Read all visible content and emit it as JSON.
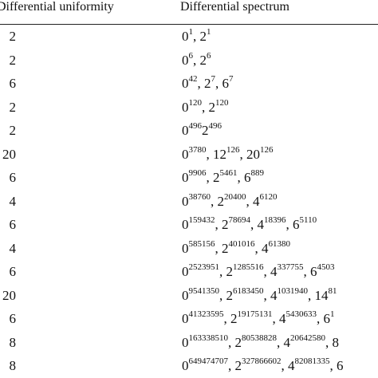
{
  "table": {
    "headers": [
      "Differential uniformity",
      "Differential spectrum"
    ],
    "rows": [
      {
        "uniformity": "2",
        "spectrum": [
          [
            "0",
            "1"
          ],
          [
            "2",
            "1"
          ]
        ]
      },
      {
        "uniformity": "2",
        "spectrum": [
          [
            "0",
            "6"
          ],
          [
            "2",
            "6"
          ]
        ]
      },
      {
        "uniformity": "6",
        "spectrum": [
          [
            "0",
            "42"
          ],
          [
            "2",
            "7"
          ],
          [
            "6",
            "7"
          ]
        ]
      },
      {
        "uniformity": "2",
        "spectrum": [
          [
            "0",
            "120"
          ],
          [
            "2",
            "120"
          ]
        ]
      },
      {
        "uniformity": "2",
        "spectrum": [
          [
            "0",
            "496"
          ],
          [
            "2",
            "496"
          ]
        ],
        "separator": ""
      },
      {
        "uniformity": "20",
        "spectrum": [
          [
            "0",
            "3780"
          ],
          [
            "12",
            "126"
          ],
          [
            "20",
            "126"
          ]
        ]
      },
      {
        "uniformity": "6",
        "spectrum": [
          [
            "0",
            "9906"
          ],
          [
            "2",
            "5461"
          ],
          [
            "6",
            "889"
          ]
        ]
      },
      {
        "uniformity": "4",
        "spectrum": [
          [
            "0",
            "38760"
          ],
          [
            "2",
            "20400"
          ],
          [
            "4",
            "6120"
          ]
        ]
      },
      {
        "uniformity": "6",
        "spectrum": [
          [
            "0",
            "159432"
          ],
          [
            "2",
            "78694"
          ],
          [
            "4",
            "18396"
          ],
          [
            "6",
            "5110"
          ]
        ]
      },
      {
        "uniformity": "4",
        "spectrum": [
          [
            "0",
            "585156"
          ],
          [
            "2",
            "401016"
          ],
          [
            "4",
            "61380"
          ]
        ]
      },
      {
        "uniformity": "6",
        "spectrum": [
          [
            "0",
            "2523951"
          ],
          [
            "2",
            "1285516"
          ],
          [
            "4",
            "337755"
          ],
          [
            "6",
            "4503"
          ]
        ]
      },
      {
        "uniformity": "20",
        "spectrum": [
          [
            "0",
            "9541350"
          ],
          [
            "2",
            "6183450"
          ],
          [
            "4",
            "1031940"
          ],
          [
            "14",
            "81"
          ]
        ]
      },
      {
        "uniformity": "6",
        "spectrum": [
          [
            "0",
            "41323595"
          ],
          [
            "2",
            "19175131"
          ],
          [
            "4",
            "5430633"
          ],
          [
            "6",
            "1"
          ]
        ]
      },
      {
        "uniformity": "8",
        "spectrum": [
          [
            "0",
            "163338510"
          ],
          [
            "2",
            "80538828"
          ],
          [
            "4",
            "20642580"
          ],
          [
            "8",
            ""
          ]
        ]
      },
      {
        "uniformity": "8",
        "spectrum": [
          [
            "0",
            "649474707"
          ],
          [
            "2",
            "327866602"
          ],
          [
            "4",
            "82081335"
          ],
          [
            "6",
            ""
          ]
        ]
      }
    ]
  }
}
